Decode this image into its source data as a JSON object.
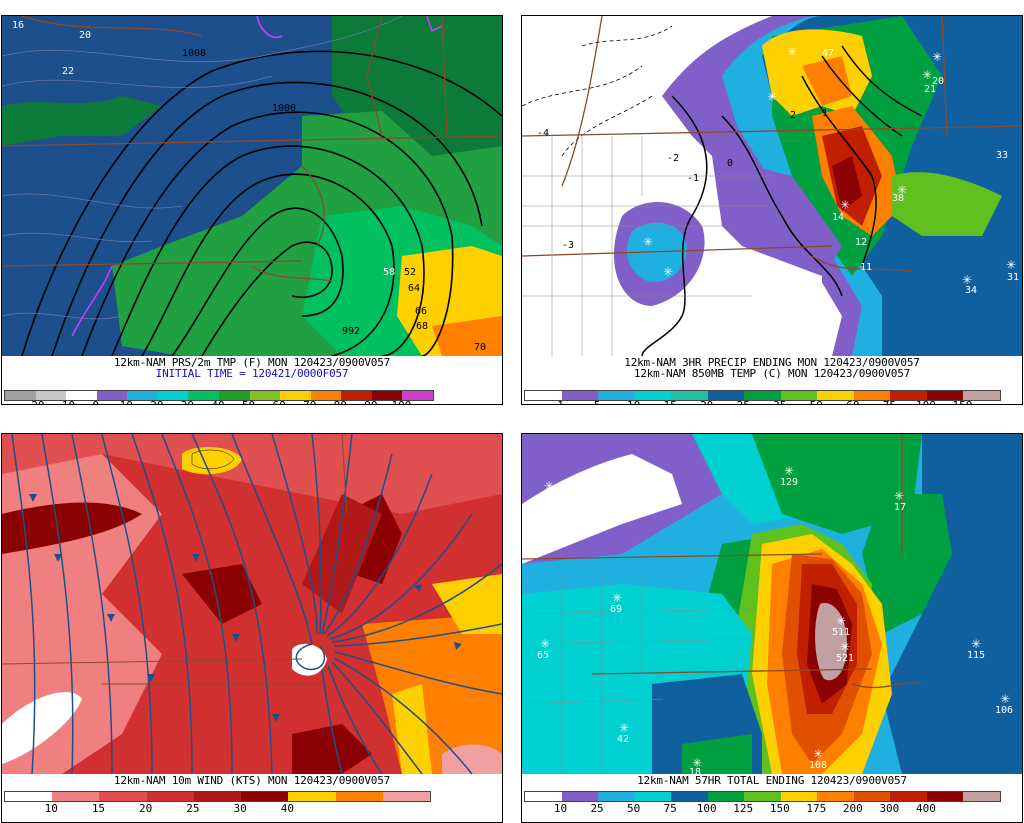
{
  "panels": [
    {
      "id": "temp",
      "caption_line1": "12km-NAM PRS/2m TMP (F) MON 120423/0900V057",
      "caption_line2": "INITIAL TIME = 120421/0000F057",
      "colorbar": {
        "colors": [
          "#a0a0a0",
          "#c8c8c8",
          "#ffffff",
          "#8060c8",
          "#20b0e0",
          "#00d0d0",
          "#00c060",
          "#20a020",
          "#80c020",
          "#ffd000",
          "#ff8000",
          "#c02000",
          "#8b0000",
          "#d040d0"
        ],
        "labels": [
          "-20",
          "-10",
          "0",
          "10",
          "20",
          "30",
          "40",
          "50",
          "60",
          "70",
          "80",
          "90",
          "100"
        ]
      },
      "map_labels": [
        "1008",
        "1000",
        "992",
        "58",
        "52",
        "64",
        "66",
        "68",
        "70",
        "16",
        "20",
        "22"
      ]
    },
    {
      "id": "precip",
      "caption_line1": "12km-NAM 3HR PRECIP ENDING MON 120423/0900V057",
      "caption_line2": "12km-NAM 850MB TEMP (C) MON 120423/0900V057",
      "colorbar": {
        "colors": [
          "#ffffff",
          "#8060c8",
          "#20b0e0",
          "#00d0d0",
          "#20c0a0",
          "#1060a0",
          "#00a040",
          "#60c020",
          "#ffd000",
          "#ff8000",
          "#c02000",
          "#8b0000",
          "#c0a0a0"
        ],
        "labels": [
          "1",
          "5",
          "10",
          "15",
          "20",
          "25",
          "35",
          "50",
          "60",
          "75",
          "100",
          "150"
        ]
      },
      "map_labels": [
        "-4",
        "-2",
        "-1",
        "0",
        "1",
        "2",
        "-3",
        "12",
        "11",
        "14",
        "20",
        "21",
        "31",
        "33",
        "34",
        "38",
        "47"
      ]
    },
    {
      "id": "wind",
      "caption_line1": "12km-NAM 10m WIND (KTS) MON 120423/0900V057",
      "caption_line2": "",
      "colorbar": {
        "colors": [
          "#ffffff",
          "#f08080",
          "#e05050",
          "#d03030",
          "#b01818",
          "#8b0000",
          "#ffd000",
          "#ff8000",
          "#f0a0a0"
        ],
        "labels": [
          "10",
          "15",
          "20",
          "25",
          "30",
          "40"
        ]
      },
      "map_labels": []
    },
    {
      "id": "total",
      "caption_line1": "12km-NAM 57HR TOTAL ENDING 120423/0900V057",
      "caption_line2": "",
      "colorbar": {
        "colors": [
          "#ffffff",
          "#8060c8",
          "#20b0e0",
          "#00d0d0",
          "#1060a0",
          "#00a040",
          "#60c020",
          "#ffd000",
          "#ff8000",
          "#e05000",
          "#c02000",
          "#8b0000",
          "#c0a0a0"
        ],
        "labels": [
          "10",
          "25",
          "50",
          "75",
          "100",
          "125",
          "150",
          "175",
          "200",
          "300",
          "400"
        ]
      },
      "map_labels": [
        "33",
        "129",
        "17",
        "69",
        "65",
        "115",
        "511",
        "521",
        "106",
        "42",
        "18",
        "108"
      ]
    }
  ]
}
